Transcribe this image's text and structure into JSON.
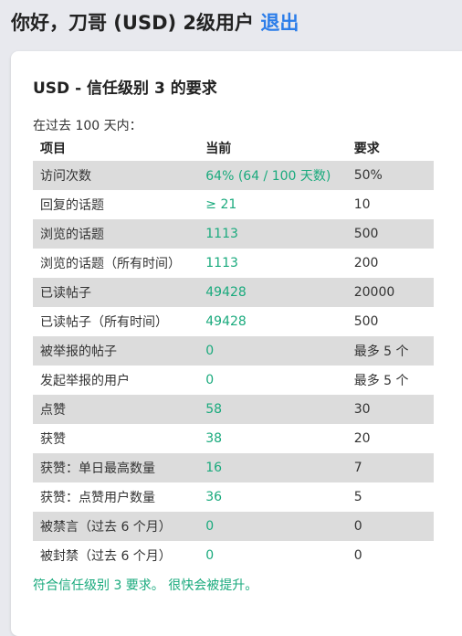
{
  "header": {
    "greeting": "你好，刀哥 (USD) 2级用户",
    "logout_label": "退出"
  },
  "card": {
    "title": "USD - 信任级别 3 的要求",
    "intro": "在过去 100 天内：",
    "columns": {
      "item": "项目",
      "current": "当前",
      "required": "要求"
    },
    "rows": [
      {
        "item": "访问次数",
        "current": "64% (64 / 100 天数)",
        "required": "50%"
      },
      {
        "item": "回复的话题",
        "current": "≥ 21",
        "required": "10"
      },
      {
        "item": "浏览的话题",
        "current": "1113",
        "required": "500"
      },
      {
        "item": "浏览的话题（所有时间）",
        "current": "1113",
        "required": "200"
      },
      {
        "item": "已读帖子",
        "current": "49428",
        "required": "20000"
      },
      {
        "item": "已读帖子（所有时间）",
        "current": "49428",
        "required": "500"
      },
      {
        "item": "被举报的帖子",
        "current": "0",
        "required": "最多 5 个"
      },
      {
        "item": "发起举报的用户",
        "current": "0",
        "required": "最多 5 个"
      },
      {
        "item": "点赞",
        "current": "58",
        "required": "30"
      },
      {
        "item": "获赞",
        "current": "38",
        "required": "20"
      },
      {
        "item": "获赞：单日最高数量",
        "current": "16",
        "required": "7"
      },
      {
        "item": "获赞：点赞用户数量",
        "current": "36",
        "required": "5"
      },
      {
        "item": "被禁言（过去 6 个月）",
        "current": "0",
        "required": "0"
      },
      {
        "item": "被封禁（过去 6 个月）",
        "current": "0",
        "required": "0"
      }
    ],
    "footer": "符合信任级别 3 要求。 很快会被提升。"
  },
  "colors": {
    "accent_link": "#2b7de9",
    "met_value": "#1aaa7d",
    "row_shade": "#dcdcdc",
    "background": "#e8e9ee"
  }
}
